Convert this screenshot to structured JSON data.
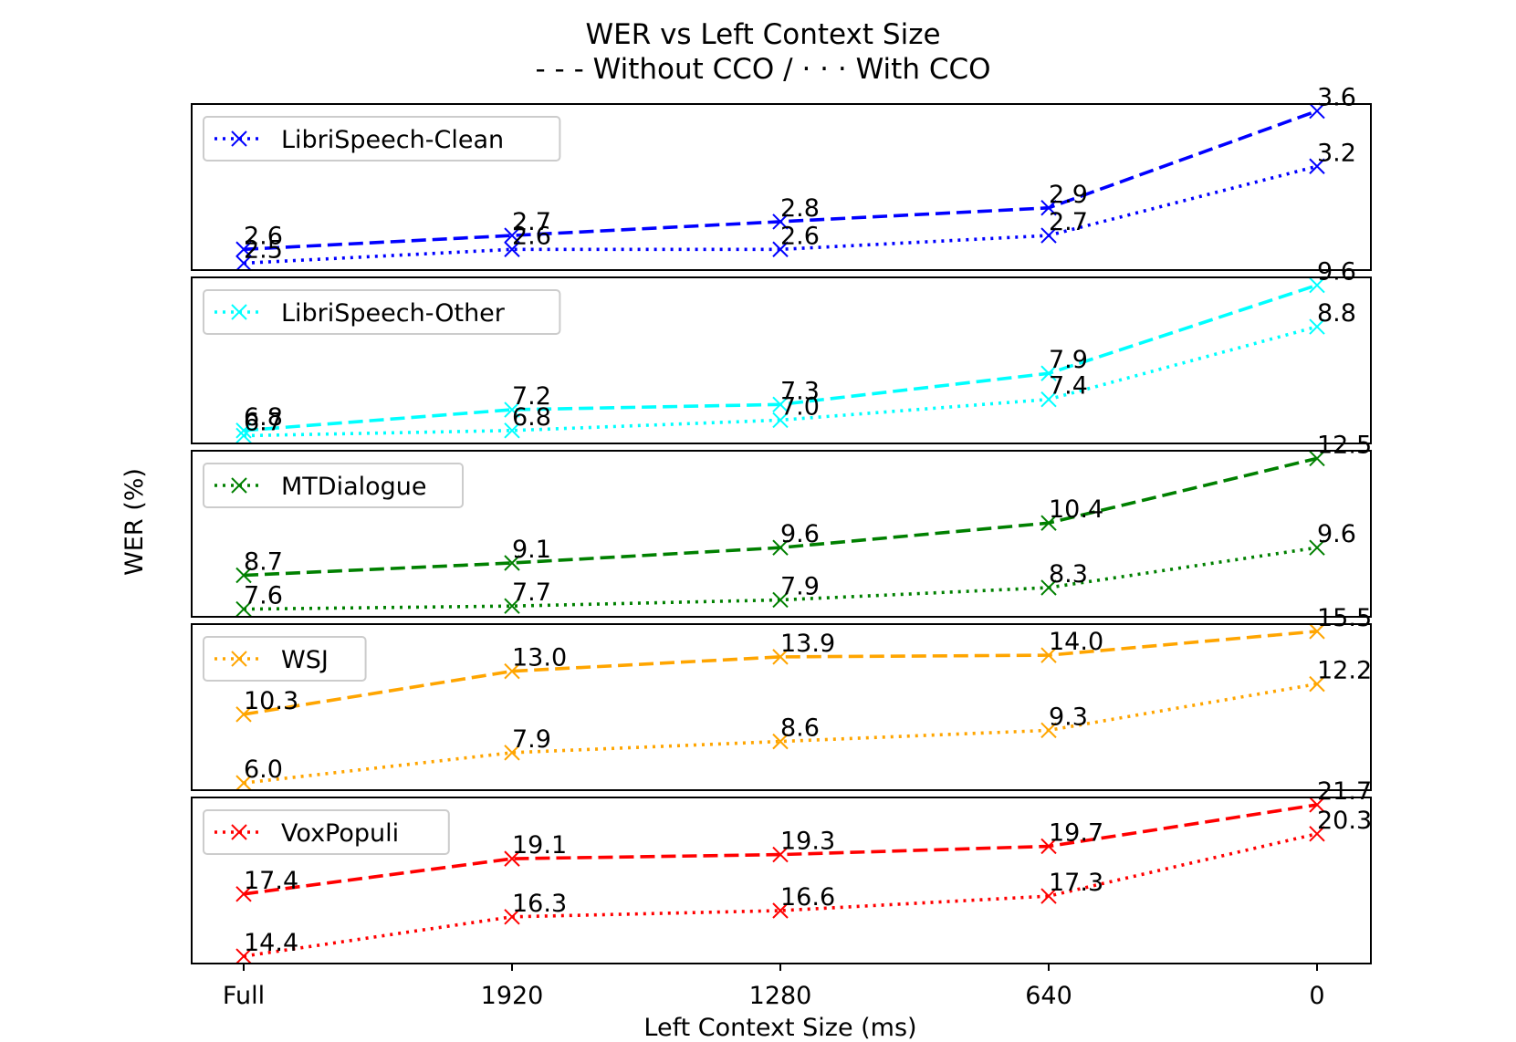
{
  "chart_data": {
    "type": "line",
    "title": "WER vs Left Context Size",
    "subtitle": "- - - Without CCO / · · · With CCO",
    "xlabel": "Left Context Size (ms)",
    "ylabel": "WER (%)",
    "categories": [
      "Full",
      "1920",
      "1280",
      "640",
      "0"
    ],
    "line_styles": {
      "without_cco": "dashed",
      "with_cco": "dotted"
    },
    "panels": [
      {
        "name": "LibriSpeech-Clean",
        "color": "#0000ff",
        "ylim": [
          2.45,
          3.65
        ],
        "without_cco": [
          2.6,
          2.7,
          2.8,
          2.9,
          3.6
        ],
        "with_cco": [
          2.5,
          2.6,
          2.6,
          2.7,
          3.2
        ],
        "without_labels": [
          "2.6",
          "2.7",
          "2.8",
          "2.9",
          "3.6"
        ],
        "with_labels": [
          "2.5",
          "2.6",
          "2.6",
          "2.7",
          "3.2"
        ]
      },
      {
        "name": "LibriSpeech-Other",
        "color": "#00ffff",
        "ylim": [
          6.55,
          9.75
        ],
        "without_cco": [
          6.8,
          7.2,
          7.3,
          7.9,
          9.6
        ],
        "with_cco": [
          6.7,
          6.8,
          7.0,
          7.4,
          8.8
        ],
        "without_labels": [
          "6.8",
          "7.2",
          "7.3",
          "7.9",
          "9.6"
        ],
        "with_labels": [
          "6.7",
          "6.8",
          "7.0",
          "7.4",
          "8.8"
        ]
      },
      {
        "name": "MTDialogue",
        "color": "#008000",
        "ylim": [
          7.35,
          12.75
        ],
        "without_cco": [
          8.7,
          9.1,
          9.6,
          10.4,
          12.5
        ],
        "with_cco": [
          7.6,
          7.7,
          7.9,
          8.3,
          9.6
        ],
        "without_labels": [
          "8.7",
          "9.1",
          "9.6",
          "10.4",
          "12.5"
        ],
        "with_labels": [
          "7.6",
          "7.7",
          "7.9",
          "8.3",
          "9.6"
        ]
      },
      {
        "name": "WSJ",
        "color": "#ffa500",
        "ylim": [
          5.55,
          15.95
        ],
        "without_cco": [
          10.3,
          13.0,
          13.9,
          14.0,
          15.5
        ],
        "with_cco": [
          6.0,
          7.9,
          8.6,
          9.3,
          12.2
        ],
        "without_labels": [
          "10.3",
          "13.0",
          "13.9",
          "14.0",
          "15.5"
        ],
        "with_labels": [
          "6.0",
          "7.9",
          "8.6",
          "9.3",
          "12.2"
        ]
      },
      {
        "name": "VoxPopuli",
        "color": "#ff0000",
        "ylim": [
          14.05,
          22.05
        ],
        "without_cco": [
          17.4,
          19.1,
          19.3,
          19.7,
          21.7
        ],
        "with_cco": [
          14.4,
          16.3,
          16.6,
          17.3,
          20.3
        ],
        "without_labels": [
          "17.4",
          "19.1",
          "19.3",
          "19.7",
          "21.7"
        ],
        "with_labels": [
          "14.4",
          "16.3",
          "16.6",
          "17.3",
          "20.3"
        ]
      }
    ]
  }
}
